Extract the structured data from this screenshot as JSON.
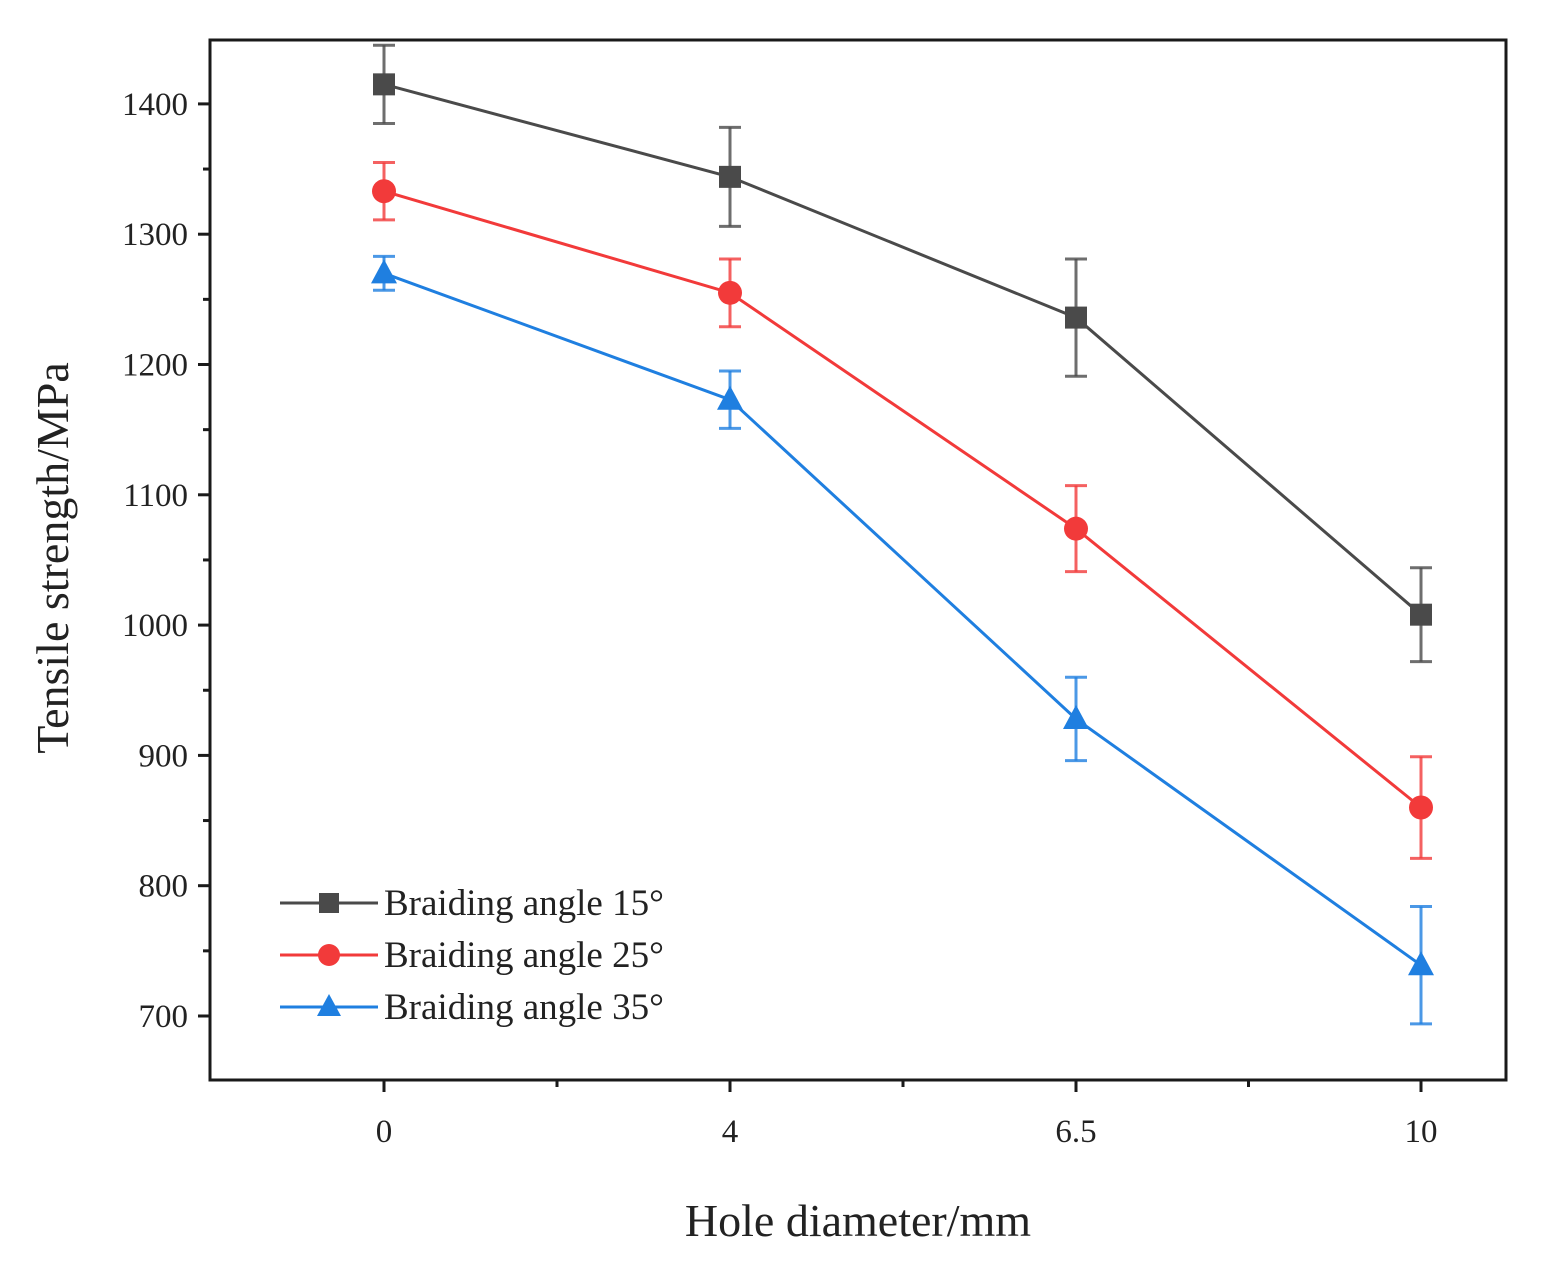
{
  "chart_data": {
    "type": "line",
    "categories": [
      "0",
      "4",
      "6.5",
      "10"
    ],
    "xlabel": "Hole diameter/mm",
    "ylabel": "Tensile strength/MPa",
    "ylim": [
      650,
      1450
    ],
    "yticks": [
      700,
      800,
      900,
      1000,
      1100,
      1200,
      1300,
      1400
    ],
    "ytick_labels": [
      "700",
      "800",
      "900",
      "1000",
      "1100",
      "1200",
      "1300",
      "1400"
    ],
    "legend_position": "bottom-left",
    "series": [
      {
        "name": "Braiding angle 15°",
        "marker": "square",
        "color": "#4a4a4a",
        "values": [
          1415,
          1344,
          1236,
          1008
        ],
        "errors": [
          30,
          38,
          45,
          36
        ]
      },
      {
        "name": "Braiding angle 25°",
        "marker": "circle",
        "color": "#f23a3a",
        "values": [
          1333,
          1255,
          1074,
          860
        ],
        "errors": [
          22,
          26,
          33,
          39
        ]
      },
      {
        "name": "Braiding angle 35°",
        "marker": "triangle",
        "color": "#1f7fe0",
        "values": [
          1270,
          1173,
          928,
          739
        ],
        "errors": [
          13,
          22,
          32,
          45
        ]
      }
    ]
  }
}
